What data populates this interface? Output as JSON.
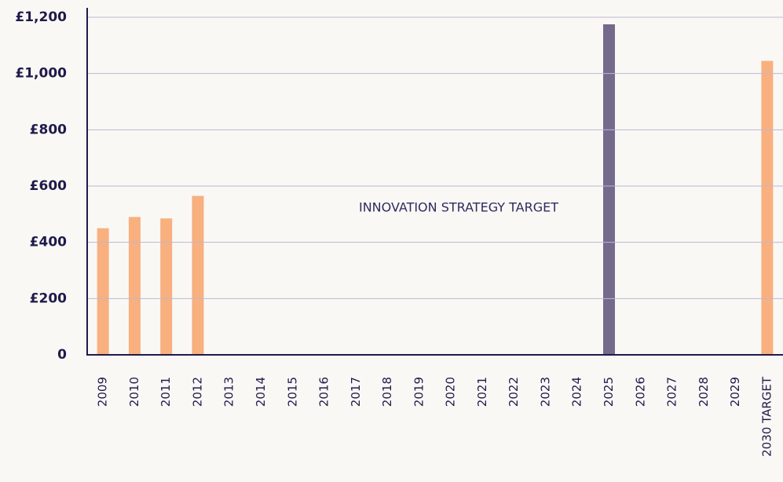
{
  "chart_data": {
    "type": "bar",
    "annotation": "INNOVATION STRATEGY TARGET",
    "categories": [
      "2009",
      "2010",
      "2011",
      "2012",
      "2013",
      "2014",
      "2015",
      "2016",
      "2017",
      "2018",
      "2019",
      "2020",
      "2021",
      "2022",
      "2023",
      "2024",
      "2025",
      "2026",
      "2027",
      "2028",
      "2029",
      "2030 TARGET"
    ],
    "values": [
      450,
      490,
      485,
      565,
      null,
      null,
      null,
      null,
      null,
      null,
      null,
      null,
      null,
      null,
      null,
      null,
      1175,
      null,
      null,
      null,
      null,
      1045
    ],
    "colors": [
      "#f8b07f",
      "#f8b07f",
      "#f8b07f",
      "#f8b07f",
      null,
      null,
      null,
      null,
      null,
      null,
      null,
      null,
      null,
      null,
      null,
      null,
      "#75698c",
      null,
      null,
      null,
      null,
      "#f8b07f"
    ],
    "ylim": [
      0,
      1200
    ],
    "yticks": [
      0,
      {
        "value": 200,
        "label": "£200"
      },
      {
        "value": 400,
        "label": "£400"
      },
      {
        "value": 600,
        "label": "£600"
      },
      {
        "value": 800,
        "label": "£800"
      },
      {
        "value": 1000,
        "label": "£1,000"
      },
      {
        "value": 1200,
        "label": "£1,200"
      }
    ],
    "grid": true
  }
}
